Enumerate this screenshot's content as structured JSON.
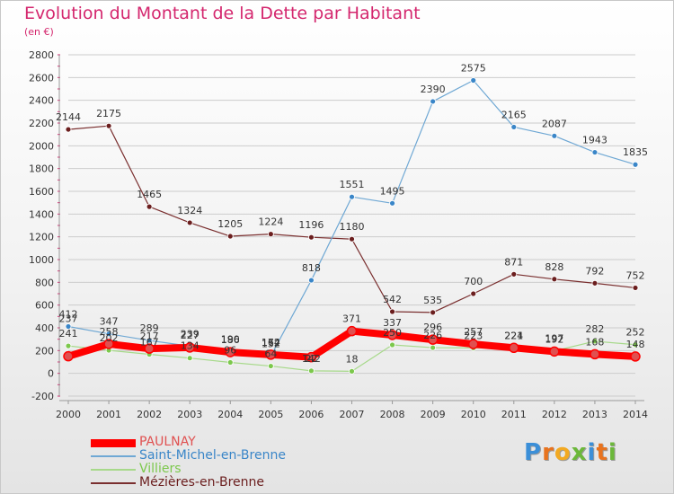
{
  "header": {
    "title": "Evolution du Montant de la Dette par Habitant",
    "subtitle": "(en €)"
  },
  "logo": {
    "text": "Proxiti",
    "letters": [
      {
        "ch": "P",
        "color": "#3b8fd8"
      },
      {
        "ch": "r",
        "color": "#e8731e"
      },
      {
        "ch": "o",
        "color": "#f2a922"
      },
      {
        "ch": "x",
        "color": "#6cb83a"
      },
      {
        "ch": "i",
        "color": "#3b8fd8"
      },
      {
        "ch": "t",
        "color": "#e8731e"
      },
      {
        "ch": "i",
        "color": "#6cb83a"
      }
    ]
  },
  "colors": {
    "axis_text": "#333333",
    "grid": "#cccccc",
    "title": "#d4276e"
  },
  "chart_data": {
    "type": "line",
    "title": "Evolution du Montant de la Dette par Habitant",
    "subtitle": "(en €)",
    "xlabel": "",
    "ylabel": "",
    "x": [
      2000,
      2001,
      2002,
      2003,
      2004,
      2005,
      2006,
      2007,
      2008,
      2009,
      2010,
      2011,
      2012,
      2013,
      2014
    ],
    "ylim": [
      -200,
      2800
    ],
    "yticks": [
      -200,
      0,
      200,
      400,
      600,
      800,
      1000,
      1200,
      1400,
      1600,
      1800,
      2000,
      2200,
      2400,
      2600,
      2800
    ],
    "grid": "horizontal",
    "legend_position": "bottom-left",
    "series": [
      {
        "name": "PAULNAY",
        "color": "#ff0000",
        "marker": "#e05050",
        "width": 8,
        "values": [
          150,
          258,
          217,
          227,
          186,
          164,
          142,
          371,
          337,
          296,
          257,
          224,
          192,
          168,
          148
        ],
        "labels": [
          "",
          "258",
          "217",
          "227",
          "186",
          "164",
          "",
          "371",
          "337",
          "296",
          "257",
          "224",
          "192",
          "168",
          "148"
        ]
      },
      {
        "name": "Saint-Michel-en-Brenne",
        "color": "#6fa8d4",
        "marker": "#3a86c8",
        "width": 1.2,
        "values": [
          412,
          347,
          289,
          239,
          190,
          152,
          818,
          1551,
          1495,
          2390,
          2575,
          2165,
          2087,
          1943,
          1835
        ],
        "labels": [
          "412",
          "347",
          "289",
          "239",
          "190",
          "152",
          "818",
          "1551",
          "1495",
          "2390",
          "2575",
          "2165",
          "2087",
          "1943",
          "1835"
        ]
      },
      {
        "name": "Villiers",
        "color": "#a7d98a",
        "marker": "#7cc84c",
        "width": 1.2,
        "values": [
          241,
          202,
          167,
          134,
          96,
          64,
          22,
          18,
          250,
          226,
          223,
          221,
          197,
          282,
          252
        ],
        "labels": [
          "241",
          "202",
          "167",
          "134",
          "96",
          "64",
          "22",
          "18",
          "250",
          "226",
          "223",
          "221",
          "197",
          "282",
          "252"
        ]
      },
      {
        "name": "Mézières-en-Brenne",
        "color": "#7a2f2f",
        "marker": "#6b1e1e",
        "width": 1.2,
        "values": [
          2144,
          2175,
          1465,
          1324,
          1205,
          1224,
          1196,
          1180,
          542,
          535,
          700,
          871,
          828,
          792,
          752
        ],
        "labels": [
          "2144",
          "2175",
          "1465",
          "1324",
          "1205",
          "1224",
          "1196",
          "1180",
          "542",
          "535",
          "700",
          "871",
          "828",
          "792",
          "752"
        ]
      }
    ],
    "annotations": [
      "237",
      "172",
      "142"
    ]
  }
}
